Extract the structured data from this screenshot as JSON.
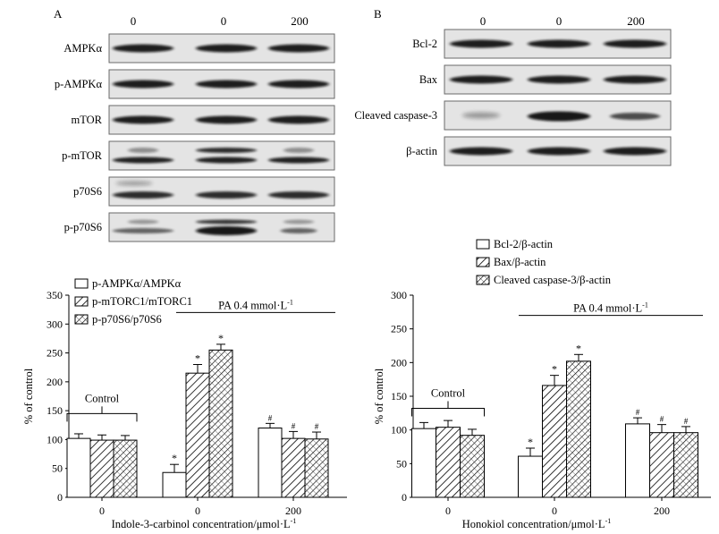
{
  "panels": {
    "A": {
      "letter": "A",
      "lane_labels": [
        "0",
        "0",
        "200"
      ],
      "blots": [
        {
          "label": "AMPKα",
          "pattern": "even"
        },
        {
          "label": "p-AMPKα",
          "pattern": "even"
        },
        {
          "label": "mTOR",
          "pattern": "even"
        },
        {
          "label": "p-mTOR",
          "pattern": "double"
        },
        {
          "label": "p70S6",
          "pattern": "faint"
        },
        {
          "label": "p-p70S6",
          "pattern": "double_mid"
        }
      ]
    },
    "B": {
      "letter": "B",
      "lane_labels": [
        "0",
        "0",
        "200"
      ],
      "blots": [
        {
          "label": "Bcl-2",
          "pattern": "even"
        },
        {
          "label": "Bax",
          "pattern": "even"
        },
        {
          "label": "Cleaved caspase-3",
          "pattern": "mid_strong"
        },
        {
          "label": "β-actin",
          "pattern": "even"
        }
      ]
    }
  },
  "chart_data": [
    {
      "type": "bar",
      "ylabel": "% of control",
      "xlabel": "Indole-3-carbinol concentration/μmol·L",
      "xlabel_sup": "-1",
      "categories": [
        "0",
        "0",
        "200"
      ],
      "ylim": [
        0,
        350
      ],
      "yticks": [
        0,
        50,
        100,
        150,
        200,
        250,
        300,
        350
      ],
      "grid": false,
      "legend_position": "top-left",
      "series": [
        {
          "name": "p-AMPKα/AMPKα",
          "pattern": "open",
          "values": [
            102,
            43,
            120
          ],
          "errors": [
            8,
            14,
            8
          ],
          "marks": [
            "",
            "*",
            "#"
          ]
        },
        {
          "name": "p-mTORC1/mTORC1",
          "pattern": "hatch",
          "values": [
            99,
            215,
            102
          ],
          "errors": [
            9,
            15,
            12
          ],
          "marks": [
            "",
            "*",
            "#"
          ]
        },
        {
          "name": "p-p70S6/p70S6",
          "pattern": "crosshatch",
          "values": [
            99,
            255,
            101
          ],
          "errors": [
            8,
            10,
            12
          ],
          "marks": [
            "",
            "*",
            "#"
          ]
        }
      ],
      "annotations": {
        "control_label": "Control",
        "pa_label": "PA 0.4 mmol·L",
        "pa_sup": "-1"
      }
    },
    {
      "type": "bar",
      "ylabel": "% of control",
      "xlabel": "Honokiol concentration/μmol·L",
      "xlabel_sup": "-1",
      "categories": [
        "0",
        "0",
        "200"
      ],
      "ylim": [
        0,
        300
      ],
      "yticks": [
        0,
        50,
        100,
        150,
        200,
        250,
        300
      ],
      "grid": false,
      "legend_position": "top-left",
      "series": [
        {
          "name": "Bcl-2/β-actin",
          "pattern": "open",
          "values": [
            102,
            61,
            109
          ],
          "errors": [
            9,
            12,
            9
          ],
          "marks": [
            "",
            "*",
            "#"
          ]
        },
        {
          "name": "Bax/β-actin",
          "pattern": "hatch",
          "values": [
            104,
            166,
            96
          ],
          "errors": [
            10,
            15,
            12
          ],
          "marks": [
            "",
            "*",
            "#"
          ]
        },
        {
          "name": "Cleaved caspase-3/β-actin",
          "pattern": "crosshatch",
          "values": [
            92,
            202,
            96
          ],
          "errors": [
            9,
            10,
            9
          ],
          "marks": [
            "",
            "*",
            "#"
          ]
        }
      ],
      "annotations": {
        "control_label": "Control",
        "pa_label": "PA 0.4 mmol·L",
        "pa_sup": "-1"
      }
    }
  ]
}
